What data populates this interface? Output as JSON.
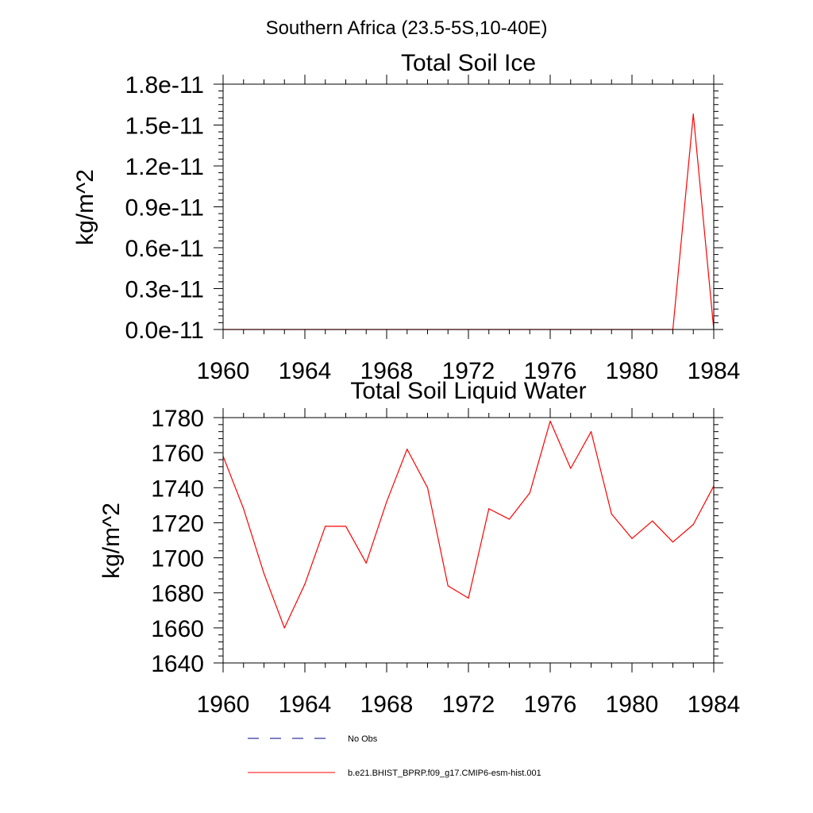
{
  "suptitle": "Southern Africa (23.5-5S,10-40E)",
  "chart_data": [
    {
      "type": "line",
      "title": "Total Soil Ice",
      "xlabel": "",
      "ylabel": "kg/m^2",
      "xlim": [
        1960,
        1984
      ],
      "ylim": [
        0,
        1.8e-11
      ],
      "x_ticks": [
        "1960",
        "1964",
        "1968",
        "1972",
        "1976",
        "1980",
        "1984"
      ],
      "y_ticks": [
        "0.0e-11",
        "0.3e-11",
        "0.6e-11",
        "0.9e-11",
        "1.2e-11",
        "1.5e-11",
        "1.8e-11"
      ],
      "series": [
        {
          "name": "b.e21.BHIST_BPRP.f09_g17.CMIP6-esm-hist.001",
          "color": "#ff0000",
          "x": [
            1960,
            1961,
            1962,
            1963,
            1964,
            1965,
            1966,
            1967,
            1968,
            1969,
            1970,
            1971,
            1972,
            1973,
            1974,
            1975,
            1976,
            1977,
            1978,
            1979,
            1980,
            1981,
            1982,
            1983,
            1984
          ],
          "values": [
            0,
            0,
            0,
            0,
            0,
            0,
            0,
            0,
            0,
            0,
            0,
            0,
            0,
            0,
            0,
            0,
            0,
            0,
            0,
            0,
            0,
            0,
            0,
            1.58e-11,
            0
          ]
        }
      ]
    },
    {
      "type": "line",
      "title": "Total Soil Liquid Water",
      "xlabel": "",
      "ylabel": "kg/m^2",
      "xlim": [
        1960,
        1984
      ],
      "ylim": [
        1640,
        1780
      ],
      "x_ticks": [
        "1960",
        "1964",
        "1968",
        "1972",
        "1976",
        "1980",
        "1984"
      ],
      "y_ticks": [
        "1640",
        "1660",
        "1680",
        "1700",
        "1720",
        "1740",
        "1760",
        "1780"
      ],
      "series": [
        {
          "name": "b.e21.BHIST_BPRP.f09_g17.CMIP6-esm-hist.001",
          "color": "#ff0000",
          "x": [
            1960,
            1961,
            1962,
            1963,
            1964,
            1965,
            1966,
            1967,
            1968,
            1969,
            1970,
            1971,
            1972,
            1973,
            1974,
            1975,
            1976,
            1977,
            1978,
            1979,
            1980,
            1981,
            1982,
            1983,
            1984
          ],
          "values": [
            1758,
            1728,
            1691,
            1660,
            1685,
            1718,
            1718,
            1697,
            1732,
            1762,
            1740,
            1684,
            1677,
            1728,
            1722,
            1737,
            1778,
            1751,
            1772,
            1725,
            1711,
            1721,
            1709,
            1719,
            1741
          ]
        }
      ]
    }
  ],
  "legend": [
    {
      "label": "No Obs",
      "style": "dashed",
      "color": "#000080"
    },
    {
      "label": "b.e21.BHIST_BPRP.f09_g17.CMIP6-esm-hist.001",
      "style": "solid",
      "color": "#ff0000"
    }
  ]
}
